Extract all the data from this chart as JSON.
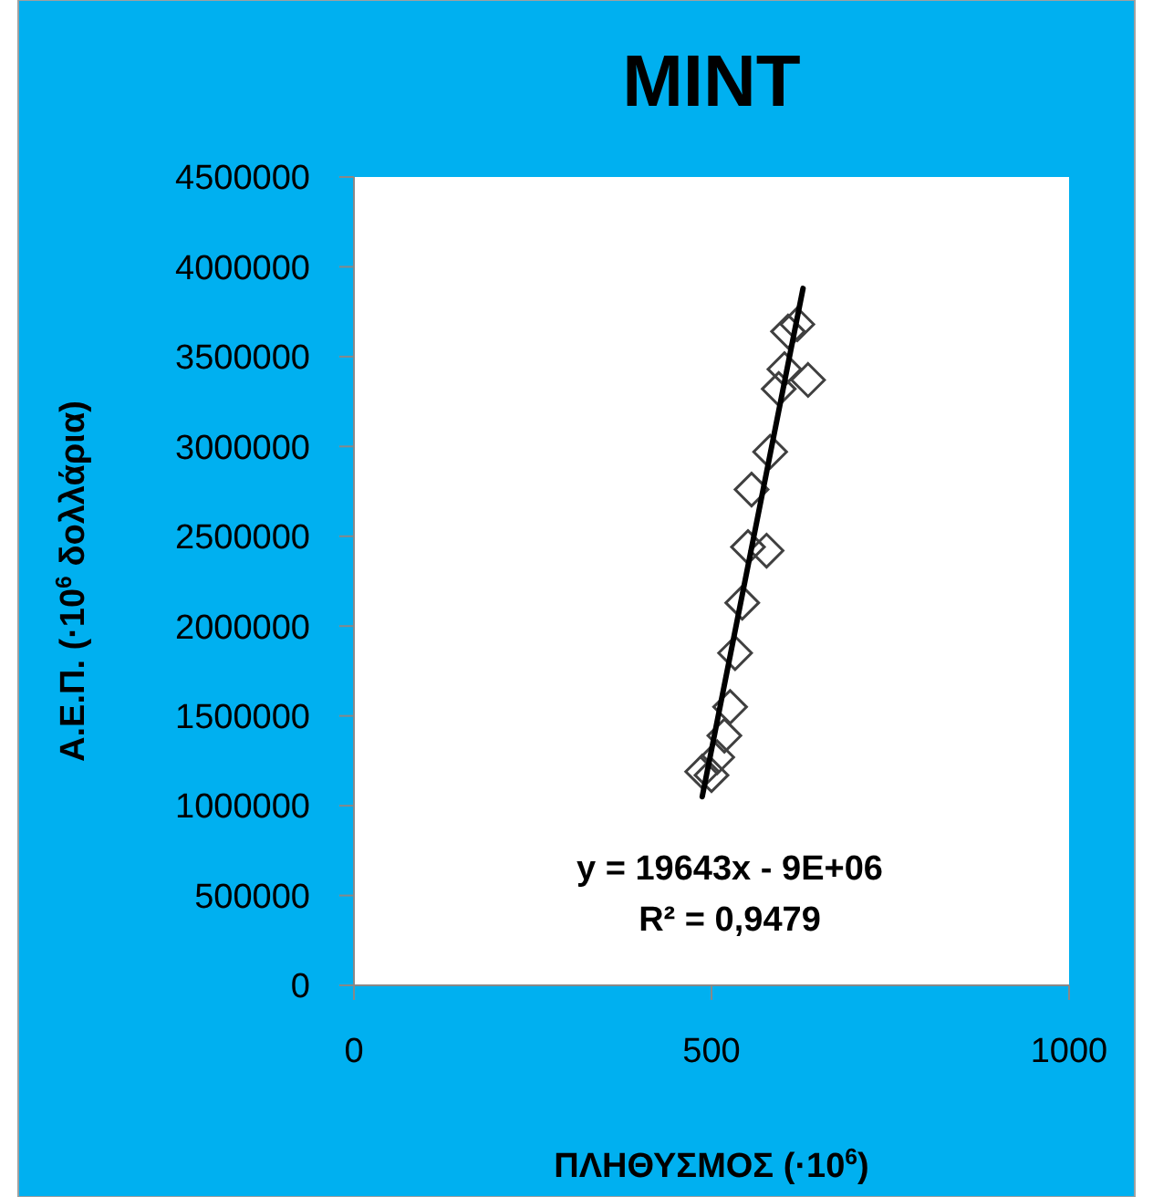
{
  "chart_data": {
    "type": "scatter",
    "title": "MINT",
    "xlabel": "ΠΛΗΘΥΣΜΟΣ (·10$^{6}$)",
    "ylabel": "Α.Ε.Π.  (·10$^{6}$ δολλάρια)",
    "annotations": [
      "y = 19643x - 9E+06",
      "R² = 0,9479"
    ],
    "xlim": [
      0,
      1000
    ],
    "xticks": [
      0,
      500,
      1000
    ],
    "ylim": [
      0,
      4500000
    ],
    "yticks": [
      0,
      500000,
      1000000,
      1500000,
      2000000,
      2500000,
      3000000,
      3500000,
      4000000,
      4500000
    ],
    "grid": false,
    "series": [
      {
        "color": "#404040",
        "marker": "diamond",
        "x": [
          620,
          607,
          602,
          635,
          594,
          582,
          556,
          551,
          577,
          543,
          533,
          526,
          518,
          508,
          487,
          500
        ],
        "values": [
          3680000,
          3640000,
          3430000,
          3370000,
          3320000,
          2970000,
          2760000,
          2440000,
          2420000,
          2130000,
          1850000,
          1550000,
          1390000,
          1270000,
          1190000,
          1170000
        ]
      },
      {
        "type": "line",
        "color": "#000000",
        "line_style": "solid",
        "x": [
          487,
          628
        ],
        "values": [
          1050000,
          3880000
        ]
      }
    ]
  }
}
